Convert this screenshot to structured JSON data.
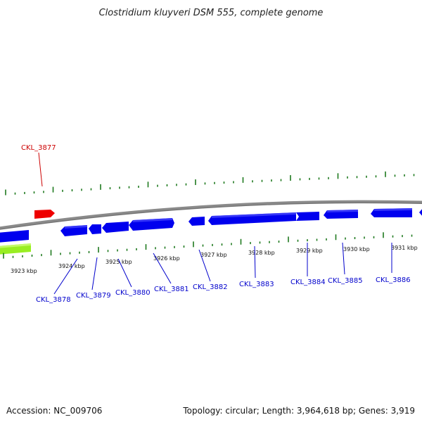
{
  "title": "Clostridium kluyveri DSM 555, complete genome",
  "footer": {
    "accession": "Accession: NC_009706",
    "summary": "Topology: circular; Length: 3,964,618 bp; Genes: 3,919"
  },
  "colors": {
    "backbone": "#8a8a8a",
    "gc_skew": "#1f7a1f",
    "gene_forward": "#0000ee",
    "gene_highlight": "#ee0000",
    "gene_other": "#99ee22",
    "label_blue": "#0000cc",
    "label_red": "#cc0000"
  },
  "ticks": [
    "3923 kbp",
    "3924 kbp",
    "3925 kbp",
    "3926 kbp",
    "3927 kbp",
    "3928 kbp",
    "3929 kbp",
    "3930 kbp",
    "3931 kbp"
  ],
  "genes": [
    {
      "name": "CKL_3877",
      "color": "red"
    },
    {
      "name": "CKL_3878",
      "color": "blue"
    },
    {
      "name": "CKL_3879",
      "color": "blue"
    },
    {
      "name": "CKL_3880",
      "color": "blue"
    },
    {
      "name": "CKL_3881",
      "color": "blue"
    },
    {
      "name": "CKL_3882",
      "color": "blue"
    },
    {
      "name": "CKL_3883",
      "color": "blue"
    },
    {
      "name": "CKL_3884",
      "color": "blue"
    },
    {
      "name": "CKL_3885",
      "color": "blue"
    },
    {
      "name": "CKL_3886",
      "color": "blue"
    }
  ]
}
